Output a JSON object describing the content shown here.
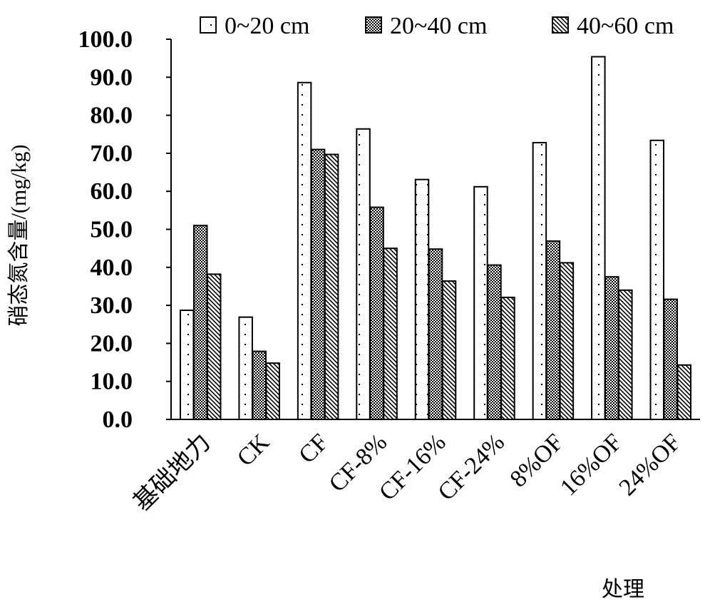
{
  "chart_data": {
    "type": "bar",
    "title": "",
    "ylabel": "硝态氮含量/(mg/kg)",
    "xlabel": "处理",
    "ylim": [
      0,
      100
    ],
    "ytick_step": 10,
    "ytick_labels": [
      "0.0",
      "10.0",
      "20.0",
      "30.0",
      "40.0",
      "50.0",
      "60.0",
      "70.0",
      "80.0",
      "90.0",
      "100.0"
    ],
    "categories": [
      "基础地力",
      "CK",
      "CF",
      "CF-8%",
      "CF-16%",
      "CF-24%",
      "8%OF",
      "16%OF",
      "24%OF"
    ],
    "series": [
      {
        "name": "0~20 cm",
        "pattern": "dots",
        "values": [
          28.7,
          26.9,
          88.6,
          76.4,
          63.1,
          61.2,
          72.8,
          95.4,
          73.4
        ]
      },
      {
        "name": "20~40 cm",
        "pattern": "checker",
        "values": [
          51.0,
          17.9,
          71.0,
          55.8,
          44.8,
          40.6,
          46.9,
          37.5,
          31.6
        ]
      },
      {
        "name": "40~60 cm",
        "pattern": "hatch",
        "values": [
          38.2,
          14.8,
          69.7,
          45.0,
          36.4,
          32.1,
          41.2,
          34.0,
          14.3
        ]
      }
    ],
    "grid": false,
    "legend_position": "top-right"
  }
}
